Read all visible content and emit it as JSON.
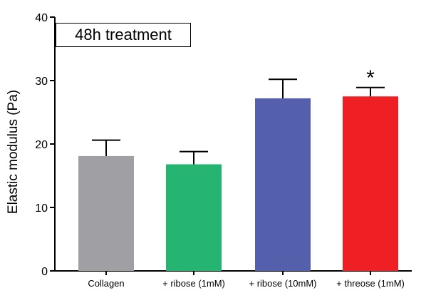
{
  "chart_data": {
    "type": "bar",
    "categories": [
      "Collagen",
      "+ ribose (1mM)",
      "+ ribose (10mM)",
      "+ threose (1mM)"
    ],
    "values": [
      18.1,
      16.8,
      27.2,
      27.5
    ],
    "errors": [
      2.5,
      2.0,
      3.0,
      1.4
    ],
    "colors": [
      "#a0a0a4",
      "#26b472",
      "#5460ac",
      "#ee2024"
    ],
    "ylabel": "Elastic modulus (Pa)",
    "xlabel": "",
    "ylim": [
      0,
      40
    ],
    "yticks": [
      0,
      10,
      20,
      30,
      40
    ],
    "annotation": "48h treatment",
    "significance": [
      {
        "category_index": 3,
        "marker": "*"
      }
    ],
    "grid": false,
    "legend": "none"
  }
}
